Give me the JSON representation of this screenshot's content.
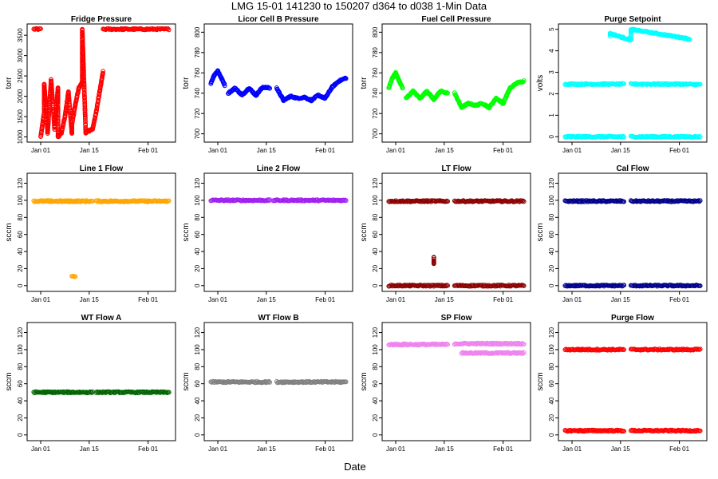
{
  "figure": {
    "main_title": "LMG   15-01    141230 to 150207    d364 to d038   1-Min Data",
    "xlabel": "Date",
    "x_ticks": [
      "Jan 01",
      "Jan 15",
      "Feb 01"
    ]
  },
  "chart_data": [
    {
      "type": "scatter",
      "title": "Fridge Pressure",
      "ylabel": "torr",
      "color": "#ff0000",
      "ylim": [
        950,
        3700
      ],
      "yticks": [
        1000,
        1500,
        2000,
        2500,
        3000,
        3500
      ],
      "series": [
        {
          "x": [
            "2014-12-30",
            "2014-12-31",
            "2015-01-01"
          ],
          "y": [
            3650,
            3650,
            3650
          ]
        },
        {
          "x": [
            "2015-01-01",
            "2015-01-02",
            "2015-01-02",
            "2015-01-03",
            "2015-01-04",
            "2015-01-05",
            "2015-01-06",
            "2015-01-06",
            "2015-01-07",
            "2015-01-08",
            "2015-01-09",
            "2015-01-10",
            "2015-01-10",
            "2015-01-11",
            "2015-01-12",
            "2015-01-13",
            "2015-01-13",
            "2015-01-14",
            "2015-01-15",
            "2015-01-16",
            "2015-01-17",
            "2015-01-18",
            "2015-01-19"
          ],
          "y": [
            1000,
            1600,
            2300,
            1100,
            2400,
            1200,
            2200,
            1000,
            1100,
            1500,
            2100,
            1100,
            1300,
            1800,
            2200,
            2350,
            3650,
            1100,
            1150,
            1200,
            1600,
            2100,
            2600
          ]
        },
        {
          "x": [
            "2015-01-19",
            "2015-01-25",
            "2015-02-01",
            "2015-02-07"
          ],
          "y": [
            3650,
            3650,
            3650,
            3650
          ]
        }
      ]
    },
    {
      "type": "scatter",
      "title": "Licor Cell B Pressure",
      "ylabel": "torr",
      "color": "#0000ff",
      "ylim": [
        695,
        805
      ],
      "yticks": [
        700,
        720,
        740,
        760,
        780,
        800
      ],
      "series": [
        {
          "x": [
            "2014-12-30",
            "2014-12-31",
            "2015-01-01",
            "2015-01-02",
            "2015-01-03"
          ],
          "y": [
            750,
            758,
            762,
            755,
            748
          ]
        },
        {
          "x": [
            "2015-01-04",
            "2015-01-06",
            "2015-01-08",
            "2015-01-10",
            "2015-01-12",
            "2015-01-14",
            "2015-01-16"
          ],
          "y": [
            740,
            745,
            738,
            745,
            738,
            746,
            745
          ]
        },
        {
          "x": [
            "2015-01-18",
            "2015-01-20",
            "2015-01-22",
            "2015-01-24",
            "2015-01-26",
            "2015-01-28",
            "2015-01-30",
            "2015-02-01",
            "2015-02-03",
            "2015-02-05",
            "2015-02-07"
          ],
          "y": [
            745,
            733,
            737,
            735,
            736,
            733,
            738,
            735,
            746,
            752,
            755
          ]
        }
      ]
    },
    {
      "type": "scatter",
      "title": "Fuel Cell Pressure",
      "ylabel": "torr",
      "color": "#00ff00",
      "ylim": [
        695,
        805
      ],
      "yticks": [
        700,
        720,
        740,
        760,
        780,
        800
      ],
      "series": [
        {
          "x": [
            "2014-12-30",
            "2014-12-31",
            "2015-01-01",
            "2015-01-02",
            "2015-01-03"
          ],
          "y": [
            745,
            755,
            760,
            752,
            745
          ]
        },
        {
          "x": [
            "2015-01-04",
            "2015-01-06",
            "2015-01-08",
            "2015-01-10",
            "2015-01-12",
            "2015-01-14",
            "2015-01-16"
          ],
          "y": [
            735,
            742,
            735,
            742,
            734,
            742,
            740
          ]
        },
        {
          "x": [
            "2015-01-18",
            "2015-01-20",
            "2015-01-22",
            "2015-01-24",
            "2015-01-26",
            "2015-01-28",
            "2015-01-30",
            "2015-02-01",
            "2015-02-03",
            "2015-02-05",
            "2015-02-07"
          ],
          "y": [
            740,
            726,
            730,
            728,
            730,
            726,
            735,
            730,
            745,
            750,
            752
          ]
        }
      ]
    },
    {
      "type": "scatter",
      "title": "Purge Setpoint",
      "ylabel": "volts",
      "color": "#00ffff",
      "ylim": [
        -0.1,
        5.1
      ],
      "yticks": [
        0,
        1,
        2,
        3,
        4,
        5
      ],
      "series": [
        {
          "x": [
            "2014-12-30",
            "2015-01-05",
            "2015-01-10",
            "2015-01-15",
            "2015-01-16"
          ],
          "y": [
            2.45,
            2.45,
            2.45,
            2.45,
            2.45
          ]
        },
        {
          "x": [
            "2015-01-18",
            "2015-01-25",
            "2015-02-01",
            "2015-02-07"
          ],
          "y": [
            2.45,
            2.45,
            2.45,
            2.43
          ]
        },
        {
          "x": [
            "2014-12-30",
            "2015-01-05",
            "2015-01-10",
            "2015-01-16"
          ],
          "y": [
            0,
            0,
            0,
            0
          ]
        },
        {
          "x": [
            "2015-01-18",
            "2015-01-25",
            "2015-02-01",
            "2015-02-07"
          ],
          "y": [
            0,
            0,
            0,
            0
          ]
        },
        {
          "x": [
            "2015-01-12",
            "2015-01-12",
            "2015-01-18",
            "2015-01-18",
            "2015-01-18",
            "2015-02-04"
          ],
          "y": [
            4.7,
            4.8,
            4.5,
            4.7,
            5.0,
            4.55
          ]
        }
      ]
    },
    {
      "type": "scatter",
      "title": "Line 1 Flow",
      "ylabel": "sccm",
      "color": "#ffa500",
      "ylim": [
        -3,
        128
      ],
      "yticks": [
        0,
        20,
        40,
        60,
        80,
        100,
        120
      ],
      "series": [
        {
          "x": [
            "2014-12-30",
            "2015-01-03",
            "2015-01-04",
            "2015-01-09",
            "2015-01-10",
            "2015-01-16"
          ],
          "y": [
            99,
            99,
            99,
            99,
            99,
            99
          ]
        },
        {
          "x": [
            "2015-01-17",
            "2015-01-25",
            "2015-02-01",
            "2015-02-07"
          ],
          "y": [
            99,
            99,
            99,
            99
          ]
        },
        {
          "x": [
            "2015-01-10",
            "2015-01-11"
          ],
          "y": [
            11,
            11
          ]
        }
      ]
    },
    {
      "type": "scatter",
      "title": "Line 2 Flow",
      "ylabel": "sccm",
      "color": "#a020f0",
      "ylim": [
        -3,
        128
      ],
      "yticks": [
        0,
        20,
        40,
        60,
        80,
        100,
        120
      ],
      "series": [
        {
          "x": [
            "2014-12-30",
            "2015-01-03",
            "2015-01-04",
            "2015-01-09",
            "2015-01-10",
            "2015-01-16"
          ],
          "y": [
            100,
            100,
            100,
            100,
            100,
            100
          ]
        },
        {
          "x": [
            "2015-01-17",
            "2015-01-25",
            "2015-02-01",
            "2015-02-07"
          ],
          "y": [
            100,
            100,
            100,
            100
          ]
        }
      ]
    },
    {
      "type": "scatter",
      "title": "LT Flow",
      "ylabel": "sccm",
      "color": "#8b0000",
      "ylim": [
        -3,
        128
      ],
      "yticks": [
        0,
        20,
        40,
        60,
        80,
        100,
        120
      ],
      "series": [
        {
          "x": [
            "2014-12-30",
            "2015-01-03",
            "2015-01-05",
            "2015-01-09",
            "2015-01-10",
            "2015-01-16"
          ],
          "y": [
            99,
            99,
            99,
            99,
            99,
            99
          ]
        },
        {
          "x": [
            "2015-01-18",
            "2015-01-25",
            "2015-02-01",
            "2015-02-07"
          ],
          "y": [
            99,
            99,
            99,
            99
          ]
        },
        {
          "x": [
            "2014-12-30",
            "2015-01-03",
            "2015-01-05",
            "2015-01-16"
          ],
          "y": [
            0,
            0,
            0,
            0
          ]
        },
        {
          "x": [
            "2015-01-18",
            "2015-02-07"
          ],
          "y": [
            0,
            0
          ]
        },
        {
          "x": [
            "2015-01-12",
            "2015-01-12",
            "2015-01-12"
          ],
          "y": [
            25,
            27,
            34
          ]
        }
      ]
    },
    {
      "type": "scatter",
      "title": "Cal Flow",
      "ylabel": "sccm",
      "color": "#00008b",
      "ylim": [
        -3,
        128
      ],
      "yticks": [
        0,
        20,
        40,
        60,
        80,
        100,
        120
      ],
      "series": [
        {
          "x": [
            "2014-12-30",
            "2015-01-03",
            "2015-01-04",
            "2015-01-09",
            "2015-01-10",
            "2015-01-16"
          ],
          "y": [
            99,
            99,
            99,
            99,
            99,
            99
          ]
        },
        {
          "x": [
            "2015-01-18",
            "2015-02-07"
          ],
          "y": [
            99,
            99
          ]
        },
        {
          "x": [
            "2014-12-30",
            "2015-01-16"
          ],
          "y": [
            0,
            0
          ]
        },
        {
          "x": [
            "2015-01-18",
            "2015-02-07"
          ],
          "y": [
            0,
            0
          ]
        }
      ]
    },
    {
      "type": "scatter",
      "title": "WT Flow A",
      "ylabel": "sccm",
      "color": "#006400",
      "ylim": [
        -3,
        128
      ],
      "yticks": [
        0,
        20,
        40,
        60,
        80,
        100,
        120
      ],
      "series": [
        {
          "x": [
            "2014-12-30",
            "2015-01-03",
            "2015-01-04",
            "2015-01-09",
            "2015-01-10",
            "2015-01-16"
          ],
          "y": [
            50,
            50,
            50,
            50,
            50,
            50
          ]
        },
        {
          "x": [
            "2015-01-17",
            "2015-02-07"
          ],
          "y": [
            50,
            50
          ]
        }
      ]
    },
    {
      "type": "scatter",
      "title": "WT Flow B",
      "ylabel": "sccm",
      "color": "#808080",
      "ylim": [
        -3,
        128
      ],
      "yticks": [
        0,
        20,
        40,
        60,
        80,
        100,
        120
      ],
      "series": [
        {
          "x": [
            "2014-12-30",
            "2015-01-04",
            "2015-01-05",
            "2015-01-16"
          ],
          "y": [
            62,
            62,
            62,
            62
          ]
        },
        {
          "x": [
            "2015-01-18",
            "2015-02-07"
          ],
          "y": [
            62,
            62
          ]
        }
      ]
    },
    {
      "type": "scatter",
      "title": "SP Flow",
      "ylabel": "sccm",
      "color": "#ee82ee",
      "ylim": [
        -3,
        128
      ],
      "yticks": [
        0,
        20,
        40,
        60,
        80,
        100,
        120
      ],
      "series": [
        {
          "x": [
            "2014-12-30",
            "2015-01-03",
            "2015-01-04",
            "2015-01-16"
          ],
          "y": [
            106,
            106,
            106,
            106
          ]
        },
        {
          "x": [
            "2015-01-18",
            "2015-02-07"
          ],
          "y": [
            107,
            107
          ]
        },
        {
          "x": [
            "2015-01-20",
            "2015-02-07"
          ],
          "y": [
            96,
            96
          ]
        }
      ]
    },
    {
      "type": "scatter",
      "title": "Purge Flow",
      "ylabel": "sccm",
      "color": "#ff0000",
      "ylim": [
        -3,
        128
      ],
      "yticks": [
        0,
        20,
        40,
        60,
        80,
        100,
        120
      ],
      "series": [
        {
          "x": [
            "2014-12-30",
            "2015-01-03",
            "2015-01-04",
            "2015-01-16"
          ],
          "y": [
            100,
            100,
            100,
            100
          ]
        },
        {
          "x": [
            "2015-01-18",
            "2015-02-07"
          ],
          "y": [
            100,
            100
          ]
        },
        {
          "x": [
            "2014-12-30",
            "2015-01-03",
            "2015-01-04",
            "2015-01-16"
          ],
          "y": [
            5,
            5,
            5,
            5
          ]
        },
        {
          "x": [
            "2015-01-18",
            "2015-02-07"
          ],
          "y": [
            5,
            5
          ]
        }
      ]
    }
  ]
}
